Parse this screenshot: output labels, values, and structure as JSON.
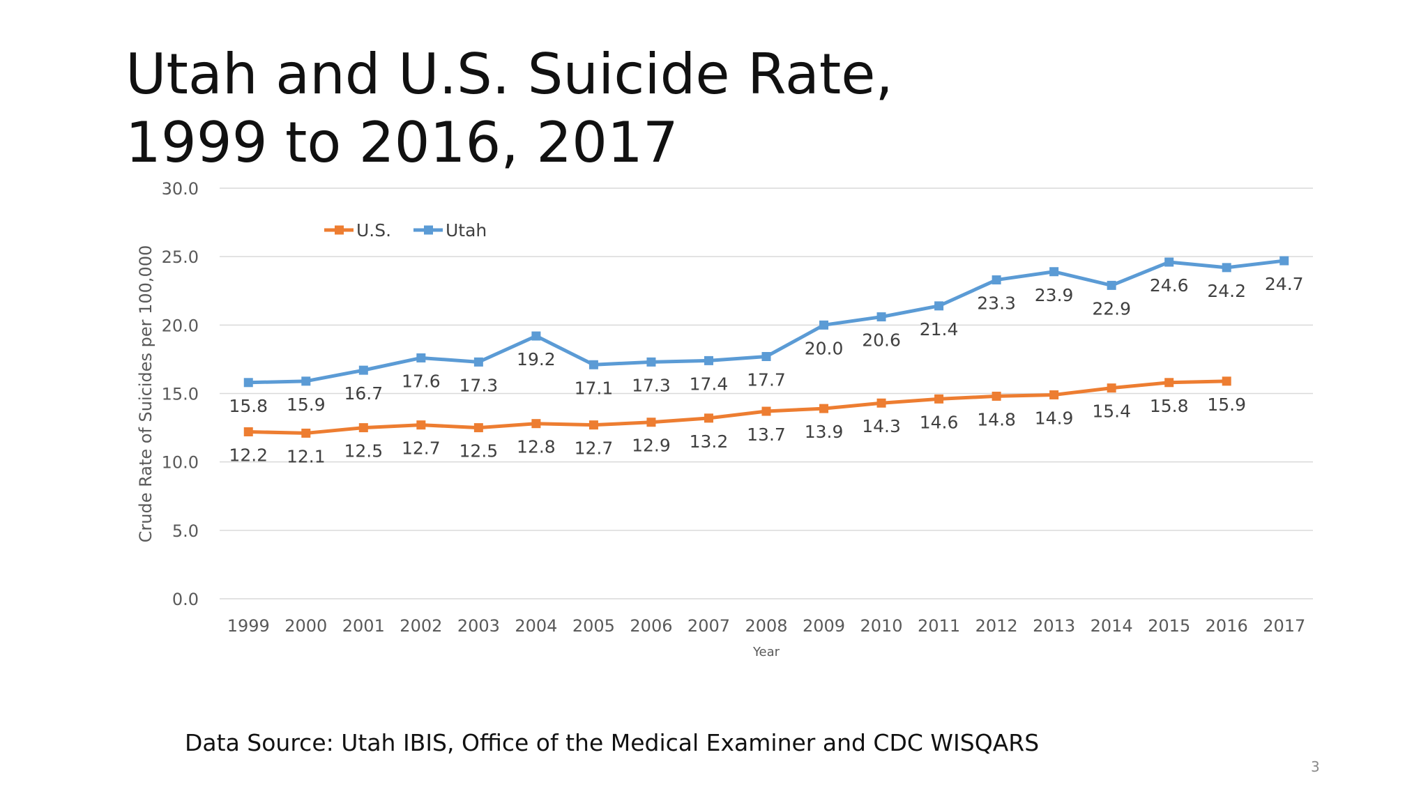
{
  "slide": {
    "title": "Utah and U.S. Suicide Rate,\n1999 to 2016, 2017",
    "source": "Data Source:  Utah IBIS, Office of the Medical Examiner and CDC WISQARS",
    "page_number": "3"
  },
  "colors": {
    "us": "#ED7D31",
    "utah": "#5B9BD5",
    "grid": "#d9d9d9",
    "tick_text": "#595959",
    "data_label_text": "#404040"
  },
  "chart_data": {
    "type": "line",
    "title": "",
    "xlabel": "Year",
    "ylabel": "Crude Rate of Suicides per 100,000",
    "x": [
      "1999",
      "2000",
      "2001",
      "2002",
      "2003",
      "2004",
      "2005",
      "2006",
      "2007",
      "2008",
      "2009",
      "2010",
      "2011",
      "2012",
      "2013",
      "2014",
      "2015",
      "2016",
      "2017"
    ],
    "ylim": [
      0,
      30
    ],
    "ytick_labels": [
      "0.0",
      "5.0",
      "10.0",
      "15.0",
      "20.0",
      "25.0",
      "30.0"
    ],
    "grid": true,
    "legend_position": "top-left",
    "series": [
      {
        "name": "U.S.",
        "marker": "square",
        "values": [
          12.2,
          12.1,
          12.5,
          12.7,
          12.5,
          12.8,
          12.7,
          12.9,
          13.2,
          13.7,
          13.9,
          14.3,
          14.6,
          14.8,
          14.9,
          15.4,
          15.8,
          15.9,
          null
        ],
        "labels": [
          "12.2",
          "12.1",
          "12.5",
          "12.7",
          "12.5",
          "12.8",
          "12.7",
          "12.9",
          "13.2",
          "13.7",
          "13.9",
          "14.3",
          "14.6",
          "14.8",
          "14.9",
          "15.4",
          "15.8",
          "15.9",
          ""
        ]
      },
      {
        "name": "Utah",
        "marker": "square",
        "values": [
          15.8,
          15.9,
          16.7,
          17.6,
          17.3,
          19.2,
          17.1,
          17.3,
          17.4,
          17.7,
          20.0,
          20.6,
          21.4,
          23.3,
          23.9,
          22.9,
          24.6,
          24.2,
          24.7
        ],
        "labels": [
          "15.8",
          "15.9",
          "16.7",
          "17.6",
          "17.3",
          "19.2",
          "17.1",
          "17.3",
          "17.4",
          "17.7",
          "20.0",
          "20.6",
          "21.4",
          "23.3",
          "23.9",
          "22.9",
          "24.6",
          "24.2",
          "24.7"
        ]
      }
    ]
  }
}
